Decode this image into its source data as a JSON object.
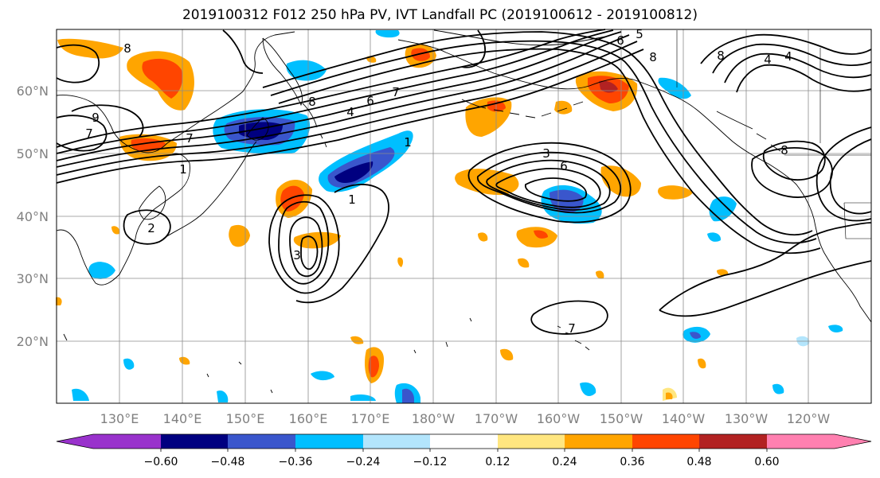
{
  "title": "2019100312 F012 250 hPa PV, IVT Landfall PC (2019100612 - 2019100812)",
  "lat_labels": [
    "60°N",
    "50°N",
    "40°N",
    "30°N",
    "20°N"
  ],
  "lon_labels": [
    "130°E",
    "140°E",
    "150°E",
    "160°E",
    "170°E",
    "180°W",
    "170°W",
    "160°W",
    "150°W",
    "140°W",
    "130°W",
    "120°W"
  ],
  "colorbar": {
    "colors": [
      "#9932cc",
      "#000080",
      "#3a56cc",
      "#00bfff",
      "#b3e5fc",
      "#ffffff",
      "#ffe680",
      "#ffa500",
      "#ff4500",
      "#b22222",
      "#ff80b0"
    ],
    "tick_labels": [
      "−0.60",
      "−0.48",
      "−0.36",
      "−0.24",
      "−0.12",
      "0.12",
      "0.24",
      "0.36",
      "0.48",
      "0.60"
    ]
  },
  "contour_labels": [
    "8",
    "7",
    "7",
    "9",
    "8",
    "4",
    "6",
    "7",
    "1",
    "1",
    "1",
    "2",
    "3",
    "3",
    "6",
    "5",
    "6",
    "8",
    "8",
    "4",
    "4",
    "8",
    "7"
  ],
  "colors": {
    "grid": "#8c8c8c",
    "axis_label": "#808080",
    "coast": "#000000",
    "contour": "#000000"
  }
}
